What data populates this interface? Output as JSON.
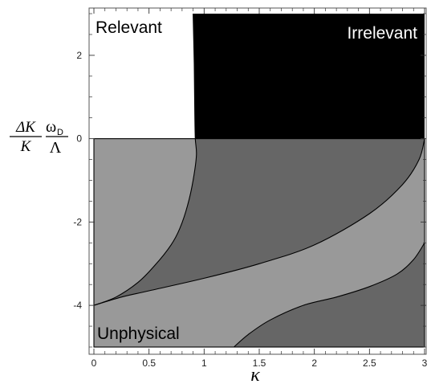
{
  "chart_data": {
    "type": "area",
    "title": "",
    "xlabel": "κ",
    "ylabel": {
      "numerator": "ΔK",
      "denominator": "K",
      "factor_numerator": "ω",
      "factor_subscript": "D",
      "factor_denominator": "Λ"
    },
    "xlim": [
      0,
      3
    ],
    "ylim": [
      -5,
      3
    ],
    "xticks": [
      "0",
      "0.5",
      "1",
      "1.5",
      "2",
      "2.5",
      "3"
    ],
    "yticks": [
      "2",
      "0",
      "-2",
      "-4"
    ],
    "xtick_values": [
      0,
      0.5,
      1,
      1.5,
      2,
      2.5,
      3
    ],
    "ytick_values": [
      2,
      0,
      -2,
      -4
    ],
    "colors": {
      "light_region": "#999999",
      "dark_region": "#666666",
      "irrelevant_region": "#000000",
      "boundary": "#000000"
    },
    "region_labels": [
      {
        "text": "Relevant",
        "color": "#000000"
      },
      {
        "text": "Irrelevant",
        "color": "#ffffff"
      },
      {
        "text": "Unphysical",
        "color": "#000000"
      }
    ],
    "curves": {
      "marginal_boundary": [
        [
          0.9,
          3.0
        ],
        [
          0.91,
          1.8
        ],
        [
          0.915,
          0.6
        ],
        [
          0.92,
          0.0
        ],
        [
          0.93,
          -0.4
        ],
        [
          0.9,
          -1.0
        ],
        [
          0.85,
          -1.6
        ],
        [
          0.78,
          -2.15
        ],
        [
          0.7,
          -2.55
        ],
        [
          0.55,
          -3.05
        ],
        [
          0.4,
          -3.45
        ],
        [
          0.2,
          -3.8
        ],
        [
          0.0,
          -4.0
        ]
      ],
      "middle_boundary": [
        [
          0.0,
          -4.0
        ],
        [
          0.25,
          -3.8
        ],
        [
          0.5,
          -3.65
        ],
        [
          1.0,
          -3.35
        ],
        [
          1.5,
          -3.0
        ],
        [
          2.0,
          -2.55
        ],
        [
          2.5,
          -1.8
        ],
        [
          2.8,
          -1.1
        ],
        [
          2.95,
          -0.5
        ],
        [
          3.0,
          0.0
        ]
      ],
      "lower_boundary": [
        [
          1.27,
          -5.0
        ],
        [
          1.4,
          -4.7
        ],
        [
          1.6,
          -4.35
        ],
        [
          1.9,
          -4.0
        ],
        [
          2.2,
          -3.8
        ],
        [
          2.5,
          -3.55
        ],
        [
          2.75,
          -3.25
        ],
        [
          2.9,
          -2.9
        ],
        [
          3.0,
          -2.5
        ]
      ]
    }
  }
}
